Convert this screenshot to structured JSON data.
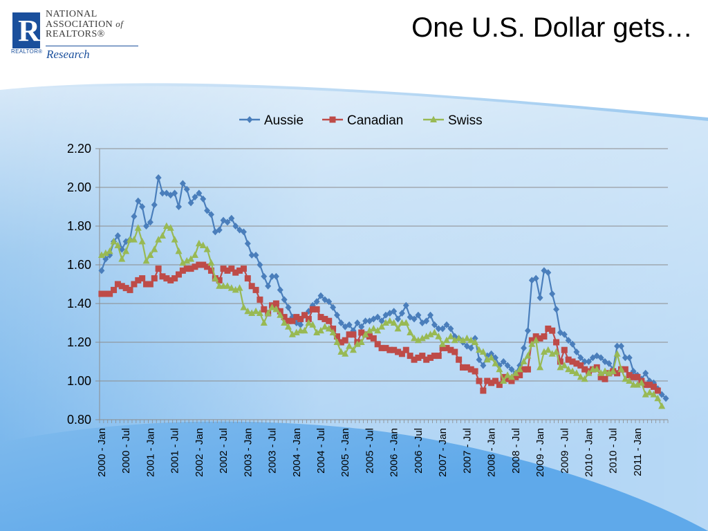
{
  "slide": {
    "title": "One U.S. Dollar gets…"
  },
  "logo": {
    "mark": "R",
    "realtor_mark": "REALTOR®",
    "org_line1": "NATIONAL",
    "org_line2a": "ASSOCIATION",
    "org_line2b": "of",
    "org_line3": "REALTORS®",
    "sub": "Research"
  },
  "colors": {
    "aussie": "#4a7ebb",
    "canadian": "#be4b48",
    "swiss": "#98b954",
    "grid": "#8c8c8c"
  },
  "chart_data": {
    "type": "line",
    "title": "",
    "xlabel": "",
    "ylabel": "",
    "ylim": [
      0.8,
      2.2
    ],
    "yticks": [
      "0.80",
      "1.00",
      "1.20",
      "1.40",
      "1.60",
      "1.80",
      "2.00",
      "2.20"
    ],
    "legend_position": "top",
    "grid": true,
    "x_tick_labels": [
      "2000 - Jan",
      "2000 - Jul",
      "2001 - Jan",
      "2001 - Jul",
      "2002 - Jan",
      "2002 - Jul",
      "2003 - Jan",
      "2003 - Jul",
      "2004 - Jan",
      "2004 - Jul",
      "2005 - Jan",
      "2005 - Jul",
      "2006 - Jan",
      "2006 - Jul",
      "2007 - Jan",
      "2007 - Jul",
      "2008 - Jan",
      "2008 - Jul",
      "2009 - Jan",
      "2009 - Jul",
      "2010 - Jan",
      "2010 - Jul",
      "2011 - Jan"
    ],
    "series": [
      {
        "name": "Aussie",
        "marker": "diamond",
        "values": [
          1.57,
          1.63,
          1.65,
          1.72,
          1.75,
          1.68,
          1.72,
          1.73,
          1.85,
          1.93,
          1.9,
          1.8,
          1.82,
          1.91,
          2.05,
          1.97,
          1.97,
          1.96,
          1.97,
          1.9,
          2.02,
          1.99,
          1.92,
          1.95,
          1.97,
          1.94,
          1.88,
          1.86,
          1.77,
          1.78,
          1.83,
          1.82,
          1.84,
          1.8,
          1.78,
          1.77,
          1.71,
          1.65,
          1.65,
          1.6,
          1.54,
          1.49,
          1.54,
          1.54,
          1.47,
          1.42,
          1.38,
          1.33,
          1.3,
          1.29,
          1.34,
          1.36,
          1.39,
          1.41,
          1.44,
          1.42,
          1.41,
          1.38,
          1.34,
          1.3,
          1.28,
          1.29,
          1.26,
          1.3,
          1.28,
          1.31,
          1.31,
          1.32,
          1.33,
          1.31,
          1.34,
          1.35,
          1.36,
          1.32,
          1.35,
          1.39,
          1.33,
          1.32,
          1.34,
          1.3,
          1.31,
          1.34,
          1.29,
          1.27,
          1.27,
          1.29,
          1.27,
          1.23,
          1.22,
          1.2,
          1.18,
          1.17,
          1.22,
          1.11,
          1.08,
          1.13,
          1.14,
          1.12,
          1.08,
          1.1,
          1.08,
          1.06,
          1.04,
          1.08,
          1.17,
          1.26,
          1.52,
          1.53,
          1.43,
          1.57,
          1.56,
          1.45,
          1.37,
          1.25,
          1.24,
          1.21,
          1.19,
          1.15,
          1.12,
          1.1,
          1.1,
          1.12,
          1.13,
          1.12,
          1.1,
          1.09,
          1.06,
          1.18,
          1.18,
          1.12,
          1.12,
          1.05,
          1.03,
          1.01,
          1.04,
          1.0,
          0.99,
          0.96,
          0.93,
          0.91
        ]
      },
      {
        "name": "Canadian",
        "marker": "square",
        "values": [
          1.45,
          1.45,
          1.45,
          1.47,
          1.5,
          1.49,
          1.48,
          1.47,
          1.5,
          1.52,
          1.53,
          1.5,
          1.5,
          1.53,
          1.58,
          1.54,
          1.53,
          1.52,
          1.53,
          1.55,
          1.57,
          1.58,
          1.58,
          1.59,
          1.6,
          1.6,
          1.59,
          1.57,
          1.53,
          1.52,
          1.58,
          1.57,
          1.58,
          1.56,
          1.57,
          1.58,
          1.53,
          1.49,
          1.47,
          1.42,
          1.37,
          1.35,
          1.39,
          1.4,
          1.36,
          1.33,
          1.31,
          1.31,
          1.33,
          1.32,
          1.34,
          1.32,
          1.37,
          1.37,
          1.33,
          1.32,
          1.31,
          1.27,
          1.23,
          1.2,
          1.21,
          1.24,
          1.24,
          1.2,
          1.25,
          1.24,
          1.23,
          1.22,
          1.19,
          1.17,
          1.17,
          1.16,
          1.16,
          1.15,
          1.14,
          1.16,
          1.13,
          1.11,
          1.12,
          1.13,
          1.11,
          1.12,
          1.13,
          1.13,
          1.17,
          1.17,
          1.16,
          1.15,
          1.11,
          1.07,
          1.07,
          1.06,
          1.05,
          1.0,
          0.95,
          1.0,
          0.99,
          1.0,
          0.98,
          1.02,
          1.01,
          1.0,
          1.02,
          1.03,
          1.06,
          1.06,
          1.21,
          1.23,
          1.22,
          1.23,
          1.27,
          1.26,
          1.2,
          1.1,
          1.16,
          1.11,
          1.1,
          1.09,
          1.08,
          1.06,
          1.05,
          1.06,
          1.07,
          1.02,
          1.01,
          1.04,
          1.05,
          1.04,
          1.06,
          1.06,
          1.03,
          1.02,
          1.02,
          1.0,
          0.98,
          0.98,
          0.97,
          0.95
        ]
      },
      {
        "name": "Swiss",
        "marker": "triangle",
        "values": [
          1.65,
          1.66,
          1.67,
          1.72,
          1.7,
          1.63,
          1.67,
          1.73,
          1.73,
          1.79,
          1.72,
          1.62,
          1.65,
          1.68,
          1.73,
          1.75,
          1.8,
          1.79,
          1.73,
          1.67,
          1.61,
          1.62,
          1.63,
          1.65,
          1.71,
          1.7,
          1.68,
          1.61,
          1.53,
          1.49,
          1.49,
          1.49,
          1.48,
          1.47,
          1.48,
          1.38,
          1.36,
          1.35,
          1.36,
          1.35,
          1.3,
          1.35,
          1.38,
          1.37,
          1.34,
          1.3,
          1.28,
          1.24,
          1.25,
          1.26,
          1.26,
          1.3,
          1.29,
          1.25,
          1.26,
          1.28,
          1.27,
          1.25,
          1.2,
          1.15,
          1.14,
          1.18,
          1.16,
          1.19,
          1.2,
          1.24,
          1.26,
          1.27,
          1.26,
          1.28,
          1.3,
          1.31,
          1.3,
          1.27,
          1.3,
          1.3,
          1.25,
          1.22,
          1.21,
          1.22,
          1.23,
          1.24,
          1.25,
          1.23,
          1.19,
          1.21,
          1.23,
          1.21,
          1.22,
          1.21,
          1.22,
          1.21,
          1.2,
          1.16,
          1.15,
          1.11,
          1.12,
          1.09,
          1.06,
          1.0,
          1.03,
          1.02,
          1.04,
          1.06,
          1.1,
          1.13,
          1.19,
          1.21,
          1.07,
          1.15,
          1.16,
          1.14,
          1.15,
          1.07,
          1.08,
          1.06,
          1.05,
          1.04,
          1.02,
          1.01,
          1.04,
          1.06,
          1.06,
          1.04,
          1.05,
          1.04,
          1.05,
          1.14,
          1.06,
          1.01,
          1.0,
          0.98,
          0.98,
          0.99,
          0.93,
          0.94,
          0.93,
          0.91,
          0.87
        ]
      }
    ]
  }
}
